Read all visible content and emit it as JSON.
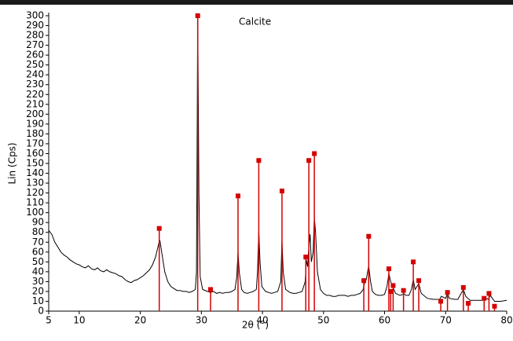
{
  "chart_data": {
    "type": "line",
    "xlabel": "2θ (°)",
    "ylabel": "Lin (Cps)",
    "xlim": [
      5,
      80
    ],
    "ylim": [
      0,
      300
    ],
    "xticks": [
      5,
      10,
      20,
      30,
      40,
      50,
      60,
      70,
      80
    ],
    "yticks": [
      0,
      10,
      20,
      30,
      40,
      50,
      60,
      70,
      80,
      90,
      100,
      110,
      120,
      130,
      140,
      150,
      160,
      170,
      180,
      190,
      200,
      210,
      220,
      230,
      240,
      250,
      260,
      270,
      280,
      290,
      300
    ],
    "grid": false,
    "series": [
      {
        "type": "line",
        "color": "#000000",
        "x": [
          5,
          5.5,
          6,
          6.5,
          7,
          7.5,
          8,
          8.5,
          9,
          9.5,
          10,
          10.5,
          11,
          11.5,
          12,
          12.5,
          13,
          13.5,
          14,
          14.5,
          15,
          15.5,
          16,
          16.5,
          17,
          17.5,
          18,
          18.5,
          19,
          19.5,
          20,
          20.5,
          21,
          21.5,
          22,
          22.5,
          23,
          23.2,
          23.5,
          24,
          24.5,
          25,
          25.5,
          26,
          26.5,
          27,
          27.5,
          28,
          28.5,
          29,
          29.2,
          29.4,
          29.6,
          29.8,
          30.2,
          31,
          31.5,
          32,
          32.5,
          33,
          33.5,
          34,
          34.5,
          35,
          35.5,
          35.8,
          36,
          36.2,
          36.6,
          37,
          37.5,
          38,
          38.5,
          39,
          39.2,
          39.4,
          39.6,
          39.9,
          40.5,
          41,
          41.5,
          42,
          42.5,
          43,
          43.2,
          43.4,
          43.8,
          44.5,
          45,
          45.5,
          46,
          46.5,
          47,
          47.2,
          47.4,
          47.6,
          47.8,
          48,
          48.3,
          48.5,
          48.7,
          49,
          49.5,
          50,
          50.5,
          51,
          51.5,
          52,
          52.5,
          53,
          53.5,
          54,
          54.5,
          55,
          55.5,
          56,
          56.5,
          56.7,
          57,
          57.4,
          57.7,
          58,
          58.5,
          59,
          59.5,
          60,
          60.4,
          60.7,
          61,
          61.4,
          61.8,
          62.5,
          63,
          63.1,
          63.5,
          64,
          64.4,
          64.7,
          65,
          65.6,
          66,
          67,
          68,
          69,
          69.3,
          70,
          70.3,
          70.6,
          71.5,
          72,
          72.9,
          73.3,
          74,
          75,
          76,
          76.3,
          77,
          77.3,
          78,
          79,
          80
        ],
        "y": [
          82,
          78,
          70,
          65,
          60,
          57,
          55,
          52,
          50,
          48,
          47,
          45,
          44,
          46,
          43,
          42,
          44,
          41,
          40,
          42,
          40,
          39,
          38,
          36,
          35,
          32,
          30,
          29,
          31,
          32,
          34,
          36,
          39,
          42,
          47,
          55,
          68,
          72,
          60,
          40,
          30,
          25,
          23,
          21,
          21,
          20,
          20,
          19,
          20,
          22,
          40,
          300,
          120,
          35,
          22,
          20,
          19,
          20,
          18,
          19,
          18,
          19,
          19,
          20,
          22,
          35,
          60,
          40,
          22,
          19,
          18,
          19,
          20,
          22,
          40,
          82,
          50,
          25,
          20,
          19,
          18,
          19,
          20,
          30,
          72,
          40,
          22,
          19,
          18,
          18,
          19,
          20,
          30,
          52,
          45,
          65,
          78,
          50,
          60,
          95,
          80,
          40,
          22,
          18,
          16,
          16,
          15,
          15,
          16,
          16,
          16,
          15,
          16,
          16,
          17,
          18,
          22,
          28,
          32,
          46,
          30,
          20,
          17,
          16,
          16,
          17,
          25,
          38,
          30,
          24,
          18,
          16,
          17,
          18,
          16,
          16,
          22,
          32,
          22,
          28,
          18,
          13,
          12,
          12,
          15,
          13,
          18,
          13,
          12,
          12,
          22,
          15,
          11,
          11,
          11,
          14,
          12,
          16,
          10,
          10,
          11
        ]
      },
      {
        "type": "stick",
        "name": "Calcite",
        "color": "#d40000",
        "x": [
          23.1,
          29.4,
          31.5,
          36.0,
          39.4,
          43.2,
          47.1,
          47.6,
          48.5,
          56.6,
          57.4,
          60.7,
          61.0,
          61.4,
          63.1,
          64.7,
          65.6,
          69.2,
          70.3,
          72.9,
          73.7,
          76.3,
          77.1,
          78.0
        ],
        "y": [
          84,
          300,
          22,
          117,
          153,
          122,
          55,
          153,
          160,
          31,
          76,
          43,
          20,
          26,
          21,
          50,
          31,
          10,
          19,
          24,
          8,
          13,
          18,
          5
        ]
      }
    ]
  }
}
